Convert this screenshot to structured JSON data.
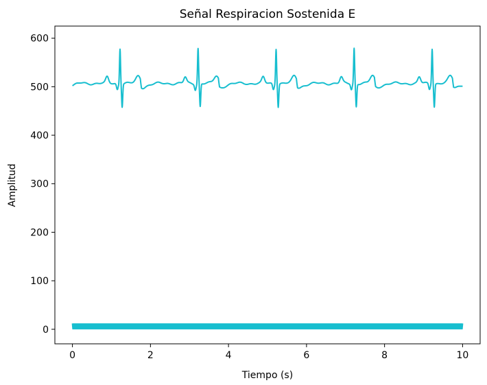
{
  "chart_data": {
    "type": "line",
    "title": "Señal Respiracion Sostenida E",
    "xlabel": "Tiempo (s)",
    "ylabel": "Amplitud",
    "xlim": [
      -0.45,
      10.45
    ],
    "ylim": [
      -30,
      625
    ],
    "xticks": [
      0,
      2,
      4,
      6,
      8,
      10
    ],
    "yticks": [
      0,
      100,
      200,
      300,
      400,
      500,
      600
    ],
    "grid": false,
    "color": "#17BECF",
    "series": [
      {
        "kind": "ecg",
        "x_range": [
          0,
          10
        ],
        "baseline": 507,
        "beat_times": [
          1.22,
          3.22,
          5.22,
          7.22,
          9.22
        ],
        "r_peak": 592,
        "s_trough": 460,
        "t_wave_peak": 522,
        "p_wave_peak": 519
      },
      {
        "kind": "oscillation",
        "x_range": [
          0,
          10
        ],
        "min": 0,
        "max": 12
      }
    ]
  }
}
